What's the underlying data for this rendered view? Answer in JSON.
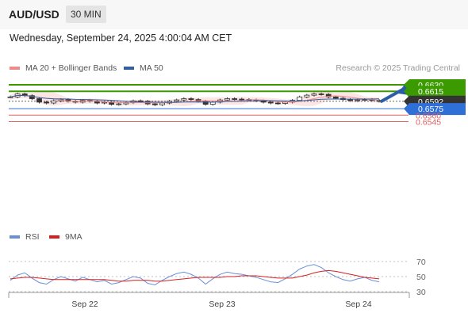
{
  "header": {
    "symbol": "AUD/USD",
    "timeframe": "30 MIN",
    "datetime": "Wednesday, September 24, 2025 4:00:04 AM CET"
  },
  "legend": {
    "ma20": {
      "label": "MA 20 + Bollinger Bands",
      "color": "#f08a8a"
    },
    "ma50": {
      "label": "MA 50",
      "color": "#335f9e"
    },
    "credit": "Research © 2025 Trading Central"
  },
  "rsi_legend": {
    "rsi": {
      "label": "RSI",
      "color": "#6a8fd8"
    },
    "ma9": {
      "label": "9MA",
      "color": "#d62020"
    }
  },
  "chart_data": [
    {
      "type": "candlestick",
      "x_labels": [
        "Sep 22",
        "Sep 23",
        "Sep 24"
      ],
      "price_levels": [
        {
          "value": 0.663,
          "label": "0.6630",
          "kind": "target",
          "color": "#3a9a00"
        },
        {
          "value": 0.6615,
          "label": "0.6615",
          "kind": "resistance",
          "color": "#3a9a00"
        },
        {
          "value": 0.6592,
          "label": "0.6592",
          "kind": "last",
          "color": "#333333"
        },
        {
          "value": 0.6575,
          "label": "0.6575",
          "kind": "pivot",
          "color": "#2f6fd8"
        },
        {
          "value": 0.656,
          "label": "0.6560",
          "kind": "support",
          "color": "#e06060"
        },
        {
          "value": 0.6545,
          "label": "0.6545",
          "kind": "support",
          "color": "#e06060"
        }
      ],
      "indicators": [
        "MA 20 + Bollinger Bands",
        "MA 50"
      ],
      "arrow": {
        "from": 0.6592,
        "to": 0.663,
        "direction": "up"
      },
      "close_series": [
        0.6602,
        0.6609,
        0.6605,
        0.6598,
        0.659,
        0.6588,
        0.6593,
        0.6596,
        0.6592,
        0.659,
        0.6594,
        0.6592,
        0.6588,
        0.659,
        0.6585,
        0.6586,
        0.6589,
        0.6593,
        0.6592,
        0.6586,
        0.6584,
        0.6588,
        0.6592,
        0.6595,
        0.6598,
        0.6596,
        0.6592,
        0.6585,
        0.659,
        0.6595,
        0.6598,
        0.6597,
        0.6596,
        0.6595,
        0.6593,
        0.659,
        0.6588,
        0.6587,
        0.659,
        0.6594,
        0.6602,
        0.6606,
        0.6609,
        0.6608,
        0.6602,
        0.6599,
        0.6596,
        0.6594,
        0.6595,
        0.6596,
        0.6594,
        0.6592
      ]
    },
    {
      "type": "line",
      "title": "RSI",
      "ylim": [
        20,
        80
      ],
      "y_ticks": [
        70,
        50,
        30
      ],
      "series": [
        {
          "name": "RSI",
          "values": [
            45,
            52,
            55,
            48,
            42,
            40,
            46,
            50,
            47,
            44,
            49,
            46,
            43,
            45,
            40,
            42,
            46,
            50,
            48,
            41,
            39,
            45,
            50,
            54,
            56,
            53,
            48,
            40,
            47,
            53,
            56,
            54,
            53,
            51,
            49,
            46,
            43,
            42,
            47,
            53,
            60,
            64,
            66,
            62,
            55,
            50,
            46,
            44,
            47,
            49,
            45,
            43
          ]
        },
        {
          "name": "9MA",
          "values": [
            47,
            48,
            49,
            49,
            48,
            47,
            46,
            46,
            46,
            46,
            46,
            46,
            46,
            46,
            45,
            44,
            44,
            45,
            45,
            45,
            44,
            44,
            45,
            46,
            47,
            48,
            49,
            49,
            49,
            49,
            50,
            50,
            51,
            51,
            51,
            50,
            49,
            48,
            48,
            48,
            50,
            52,
            55,
            57,
            58,
            57,
            55,
            53,
            51,
            49,
            48,
            47
          ]
        }
      ]
    }
  ]
}
